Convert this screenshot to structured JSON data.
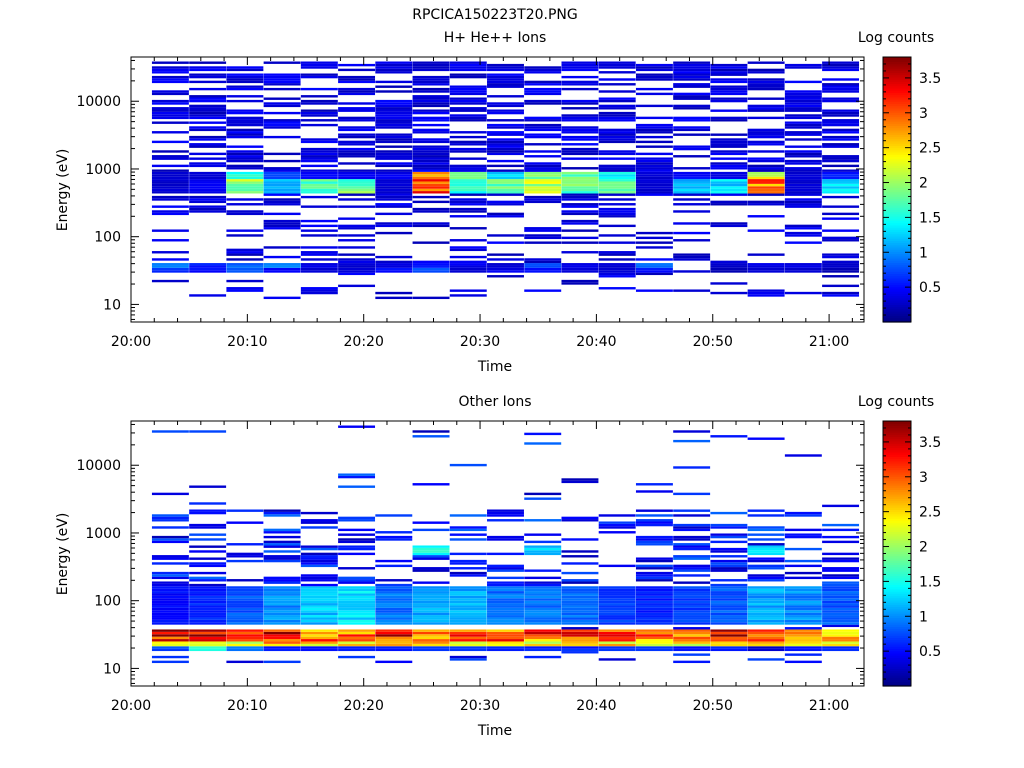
{
  "figure_title": "RPCICA150223T20.PNG",
  "chart_data": [
    {
      "type": "heatmap",
      "title": "H+ He++ Ions",
      "xlabel": "Time",
      "ylabel": "Energy (eV)",
      "colorbar_label": "Log counts",
      "x_range": [
        "20:00",
        "21:03"
      ],
      "x_ticks": [
        "20:00",
        "20:10",
        "20:20",
        "20:30",
        "20:40",
        "20:50",
        "21:00"
      ],
      "y_scale": "log",
      "y_range": [
        5.5,
        45000
      ],
      "y_ticks": [
        {
          "value": 10,
          "label": "10"
        },
        {
          "value": 100,
          "label": "100"
        },
        {
          "value": 1000,
          "label": "1000"
        },
        {
          "value": 10000,
          "label": "10000"
        }
      ],
      "color_range": [
        0,
        3.8
      ],
      "colorbar_ticks": [
        "0.5",
        "1",
        "1.5",
        "2",
        "2.5",
        "3",
        "3.5"
      ],
      "colormap": [
        "#00007f",
        "#0000ff",
        "#007fff",
        "#00ffff",
        "#7fff7f",
        "#ffff00",
        "#ff7f00",
        "#ff0000",
        "#7f0000"
      ],
      "time_bin_minutes": 3.2,
      "bands": [
        {
          "from": 420,
          "to": 700,
          "intensity": [
            0.3,
            0.4,
            2.0,
            1.2,
            1.8,
            1.8,
            0.3,
            3.0,
            1.6,
            1.9,
            2.1,
            1.8,
            1.7,
            0.3,
            1.2,
            1.3,
            2.9,
            0.3,
            1.3
          ]
        },
        {
          "from": 700,
          "to": 900,
          "intensity": [
            0.3,
            0.3,
            1.6,
            0.8,
            0.5,
            0.4,
            0.4,
            2.6,
            1.8,
            1.3,
            1.9,
            1.7,
            1.5,
            0.3,
            0.5,
            0.4,
            2.2,
            0.3,
            0.6
          ]
        },
        {
          "from": 34,
          "to": 40,
          "intensity": [
            0.9,
            0.6,
            0.9,
            0.9,
            0.4,
            0.3,
            0.4,
            0.6,
            0.4,
            0.3,
            0.7,
            0.4,
            0.3,
            0.8,
            0.0,
            0.3,
            0.4,
            0.4,
            0.3
          ]
        },
        {
          "from": 29,
          "to": 34,
          "intensity": [
            0.7,
            0.5,
            0.7,
            0.5,
            0.3,
            0.3,
            0.5,
            0.8,
            0.3,
            0.4,
            0.5,
            0.3,
            0.3,
            0.5,
            0.0,
            0.2,
            0.3,
            0.3,
            0.2
          ]
        }
      ],
      "background_intensity": [
        0.2,
        0.5
      ]
    },
    {
      "type": "heatmap",
      "title": "Other Ions",
      "xlabel": "Time",
      "ylabel": "Energy (eV)",
      "colorbar_label": "Log counts",
      "x_range": [
        "20:00",
        "21:03"
      ],
      "x_ticks": [
        "20:00",
        "20:10",
        "20:20",
        "20:30",
        "20:40",
        "20:50",
        "21:00"
      ],
      "y_scale": "log",
      "y_range": [
        5.5,
        45000
      ],
      "y_ticks": [
        {
          "value": 10,
          "label": "10"
        },
        {
          "value": 100,
          "label": "100"
        },
        {
          "value": 1000,
          "label": "1000"
        },
        {
          "value": 10000,
          "label": "10000"
        }
      ],
      "color_range": [
        0,
        3.8
      ],
      "colorbar_ticks": [
        "0.5",
        "1",
        "1.5",
        "2",
        "2.5",
        "3",
        "3.5"
      ],
      "colormap": [
        "#00007f",
        "#0000ff",
        "#007fff",
        "#00ffff",
        "#7fff7f",
        "#ffff00",
        "#ff7f00",
        "#ff0000",
        "#7f0000"
      ],
      "time_bin_minutes": 3.2,
      "bands": [
        {
          "from": 30,
          "to": 38,
          "intensity": [
            3.6,
            3.5,
            3.3,
            3.4,
            2.7,
            2.9,
            3.3,
            3.0,
            3.0,
            2.8,
            3.4,
            3.3,
            3.0,
            3.2,
            2.9,
            3.4,
            3.2,
            3.0,
            2.6
          ]
        },
        {
          "from": 25,
          "to": 30,
          "intensity": [
            3.2,
            3.1,
            3.0,
            2.9,
            2.9,
            3.1,
            3.0,
            2.8,
            2.9,
            3.1,
            2.8,
            3.0,
            2.9,
            2.8,
            2.9,
            3.0,
            2.9,
            2.8,
            2.7
          ]
        },
        {
          "from": 22,
          "to": 25,
          "intensity": [
            2.6,
            2.5,
            2.4,
            2.6,
            2.5,
            2.4,
            2.6,
            2.5,
            2.3,
            2.4,
            2.4,
            2.5,
            2.5,
            2.3,
            2.4,
            2.6,
            2.4,
            2.3,
            2.4
          ]
        },
        {
          "from": 18,
          "to": 22,
          "intensity": [
            0.8,
            1.5,
            1.0,
            0.6,
            0.6,
            0.6,
            0.6,
            0.6,
            0.6,
            0.6,
            0.6,
            0.6,
            0.7,
            0.6,
            0.6,
            0.6,
            0.3,
            0.6,
            0.6
          ]
        },
        {
          "from": 45,
          "to": 160,
          "intensity": [
            0.5,
            0.6,
            0.8,
            1.0,
            1.2,
            1.3,
            0.9,
            1.1,
            1.1,
            0.9,
            0.9,
            0.9,
            0.7,
            0.6,
            0.7,
            0.8,
            1.1,
            1.0,
            0.8
          ]
        },
        {
          "from": 470,
          "to": 640,
          "intensity": [
            0.0,
            0.0,
            0.0,
            0.0,
            0.0,
            0.0,
            0.0,
            1.6,
            0.0,
            0.0,
            1.2,
            0.0,
            0.0,
            0.0,
            0.0,
            0.0,
            1.4,
            0.0,
            0.0
          ]
        }
      ],
      "background_intensity": [
        0.2,
        0.9
      ]
    }
  ]
}
